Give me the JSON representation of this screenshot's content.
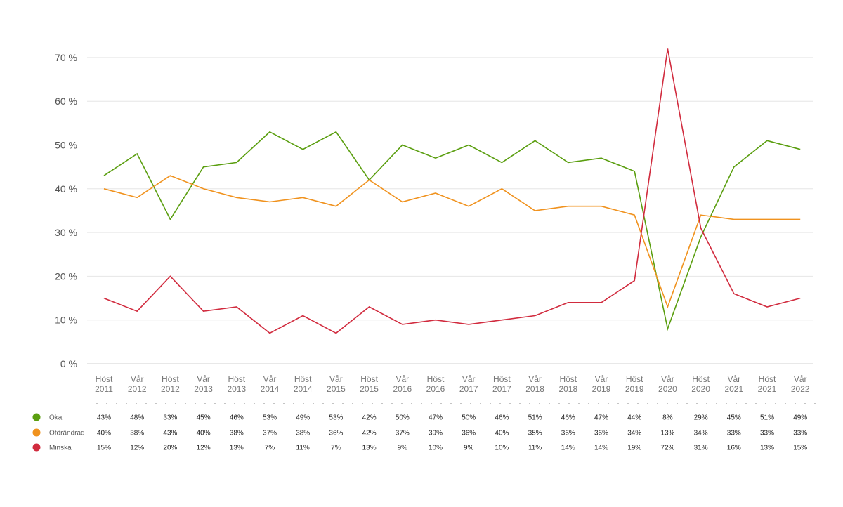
{
  "chart_data": {
    "type": "line",
    "categories": [
      "Höst 2011",
      "Vår 2012",
      "Höst 2012",
      "Vår 2013",
      "Höst 2013",
      "Vår 2014",
      "Höst 2014",
      "Vår 2015",
      "Höst 2015",
      "Vår 2016",
      "Höst 2016",
      "Vår 2017",
      "Höst 2017",
      "Vår 2018",
      "Höst 2018",
      "Vår 2019",
      "Höst 2019",
      "Vår 2020",
      "Höst 2020",
      "Vår 2021",
      "Höst 2021",
      "Vår 2022"
    ],
    "ylim": [
      0,
      70
    ],
    "yticks": [
      "0 %",
      "10 %",
      "20 %",
      "30 %",
      "40 %",
      "50 %",
      "60 %",
      "70 %"
    ],
    "grid": true,
    "series": [
      {
        "name": "Öka",
        "color": "#5a9e0f",
        "values": [
          43,
          48,
          33,
          45,
          46,
          53,
          49,
          53,
          42,
          50,
          47,
          50,
          46,
          51,
          46,
          47,
          44,
          8,
          29,
          45,
          51,
          49
        ],
        "labels": [
          "43%",
          "48%",
          "33%",
          "45%",
          "46%",
          "53%",
          "49%",
          "53%",
          "42%",
          "50%",
          "47%",
          "50%",
          "46%",
          "51%",
          "46%",
          "47%",
          "44%",
          "8%",
          "29%",
          "45%",
          "51%",
          "49%"
        ]
      },
      {
        "name": "Oförändrad",
        "color": "#f0921e",
        "values": [
          40,
          38,
          43,
          40,
          38,
          37,
          38,
          36,
          42,
          37,
          39,
          36,
          40,
          35,
          36,
          36,
          34,
          13,
          34,
          33,
          33,
          33
        ],
        "labels": [
          "40%",
          "38%",
          "43%",
          "40%",
          "38%",
          "37%",
          "38%",
          "36%",
          "42%",
          "37%",
          "39%",
          "36%",
          "40%",
          "35%",
          "36%",
          "36%",
          "34%",
          "13%",
          "34%",
          "33%",
          "33%",
          "33%"
        ]
      },
      {
        "name": "Minska",
        "color": "#d12b3e",
        "values": [
          15,
          12,
          20,
          12,
          13,
          7,
          11,
          7,
          13,
          9,
          10,
          9,
          10,
          11,
          14,
          14,
          19,
          72,
          31,
          16,
          13,
          15
        ],
        "labels": [
          "15%",
          "12%",
          "20%",
          "12%",
          "13%",
          "7%",
          "11%",
          "7%",
          "13%",
          "9%",
          "10%",
          "9%",
          "10%",
          "11%",
          "14%",
          "14%",
          "19%",
          "72%",
          "31%",
          "16%",
          "13%",
          "15%"
        ]
      }
    ]
  }
}
